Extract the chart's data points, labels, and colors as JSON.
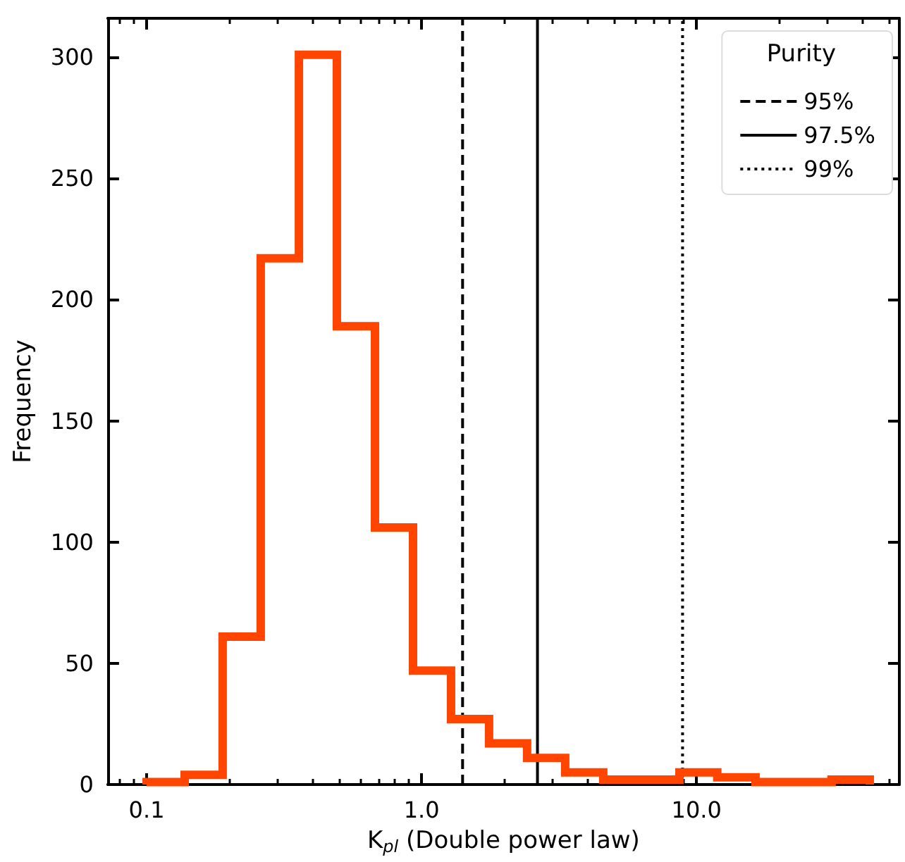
{
  "chart_data": {
    "type": "histogram",
    "xlabel": "K$_{pl}$ (Double power law)",
    "ylabel": "Frequency",
    "legend_title": "Purity",
    "legend": "top right",
    "grid": false,
    "log": "x",
    "bins": [
      0.1,
      0.1375,
      0.189,
      0.26,
      0.358,
      0.492,
      0.677,
      0.931,
      1.28,
      1.76,
      2.42,
      3.33,
      4.58,
      6.3,
      8.67,
      11.9,
      16.4,
      22.6,
      31.0,
      42.7
    ],
    "values": [
      1,
      4,
      61,
      217,
      301,
      189,
      106,
      47,
      27,
      17,
      11,
      5,
      2,
      2,
      5,
      3,
      1,
      1,
      2
    ],
    "color": "#ff4500",
    "xlim": [
      0.0722,
      54.7
    ],
    "xticks": [
      {
        "value": 0.1,
        "label": "0.1"
      },
      {
        "value": 1,
        "label": "1.0"
      },
      {
        "value": 10,
        "label": "10.0"
      }
    ],
    "ylim": [
      0,
      316
    ],
    "yticks": [
      0,
      50,
      100,
      150,
      200,
      250,
      300
    ],
    "series": [
      {
        "type": "line",
        "name": "95%",
        "x": [
          1.41,
          1.41
        ],
        "values": [
          0,
          316
        ],
        "line_style": "dashed",
        "color": "#000000"
      },
      {
        "type": "line",
        "name": "97.5%",
        "x": [
          2.64,
          2.64
        ],
        "values": [
          0,
          316
        ],
        "line_style": "solid",
        "color": "#000000"
      },
      {
        "type": "line",
        "name": "99%",
        "x": [
          8.9,
          8.9
        ],
        "values": [
          0,
          316
        ],
        "line_style": "dotted",
        "color": "#000000"
      }
    ]
  }
}
